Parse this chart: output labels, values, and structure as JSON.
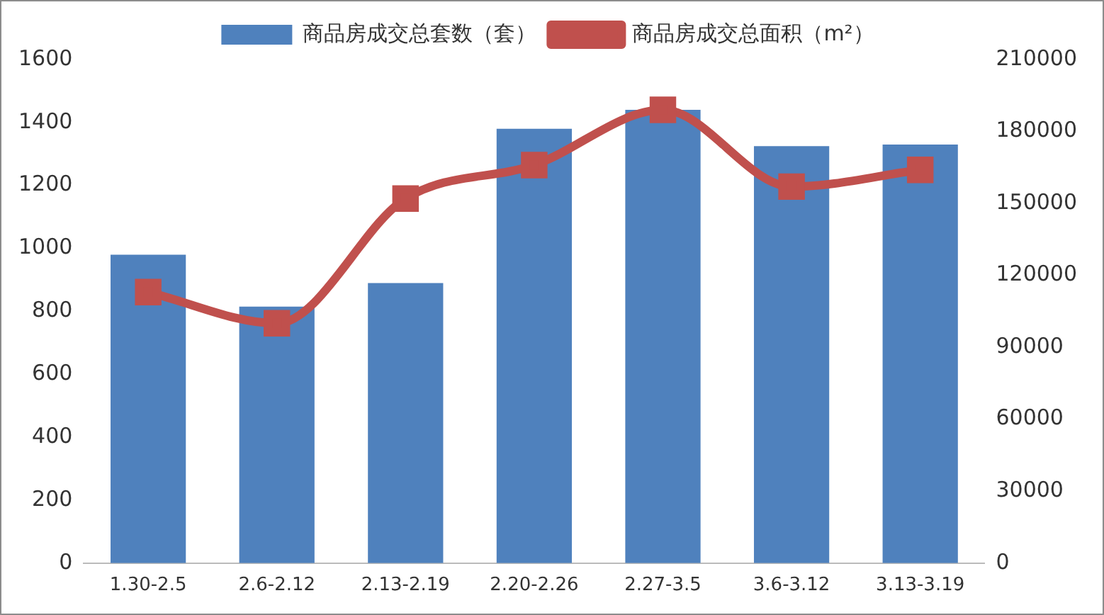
{
  "chart_data": {
    "type": "bar",
    "categories": [
      "1.30-2.5",
      "2.6-2.12",
      "2.13-2.19",
      "2.20-2.26",
      "2.27-3.5",
      "3.6-3.12",
      "3.13-3.19"
    ],
    "series": [
      {
        "name": "商品房成交总套数（套）",
        "color": "#4f81bd",
        "values": [
          980,
          815,
          890,
          1380,
          1440,
          1325,
          1330
        ]
      },
      {
        "name": "商品房成交总面积（m²）",
        "type": "line",
        "axis": "y2",
        "color": "#c0504d",
        "values": [
          113000,
          100000,
          152000,
          166000,
          189000,
          157000,
          164000
        ]
      }
    ],
    "ylim": [
      0,
      1600
    ],
    "yticks": [
      0,
      200,
      400,
      600,
      800,
      1000,
      1200,
      1400,
      1600
    ],
    "y2lim": [
      0,
      210000
    ],
    "y2ticks": [
      0,
      30000,
      60000,
      90000,
      120000,
      150000,
      180000,
      210000
    ],
    "grid": false,
    "legend": "top",
    "marker": "square"
  }
}
